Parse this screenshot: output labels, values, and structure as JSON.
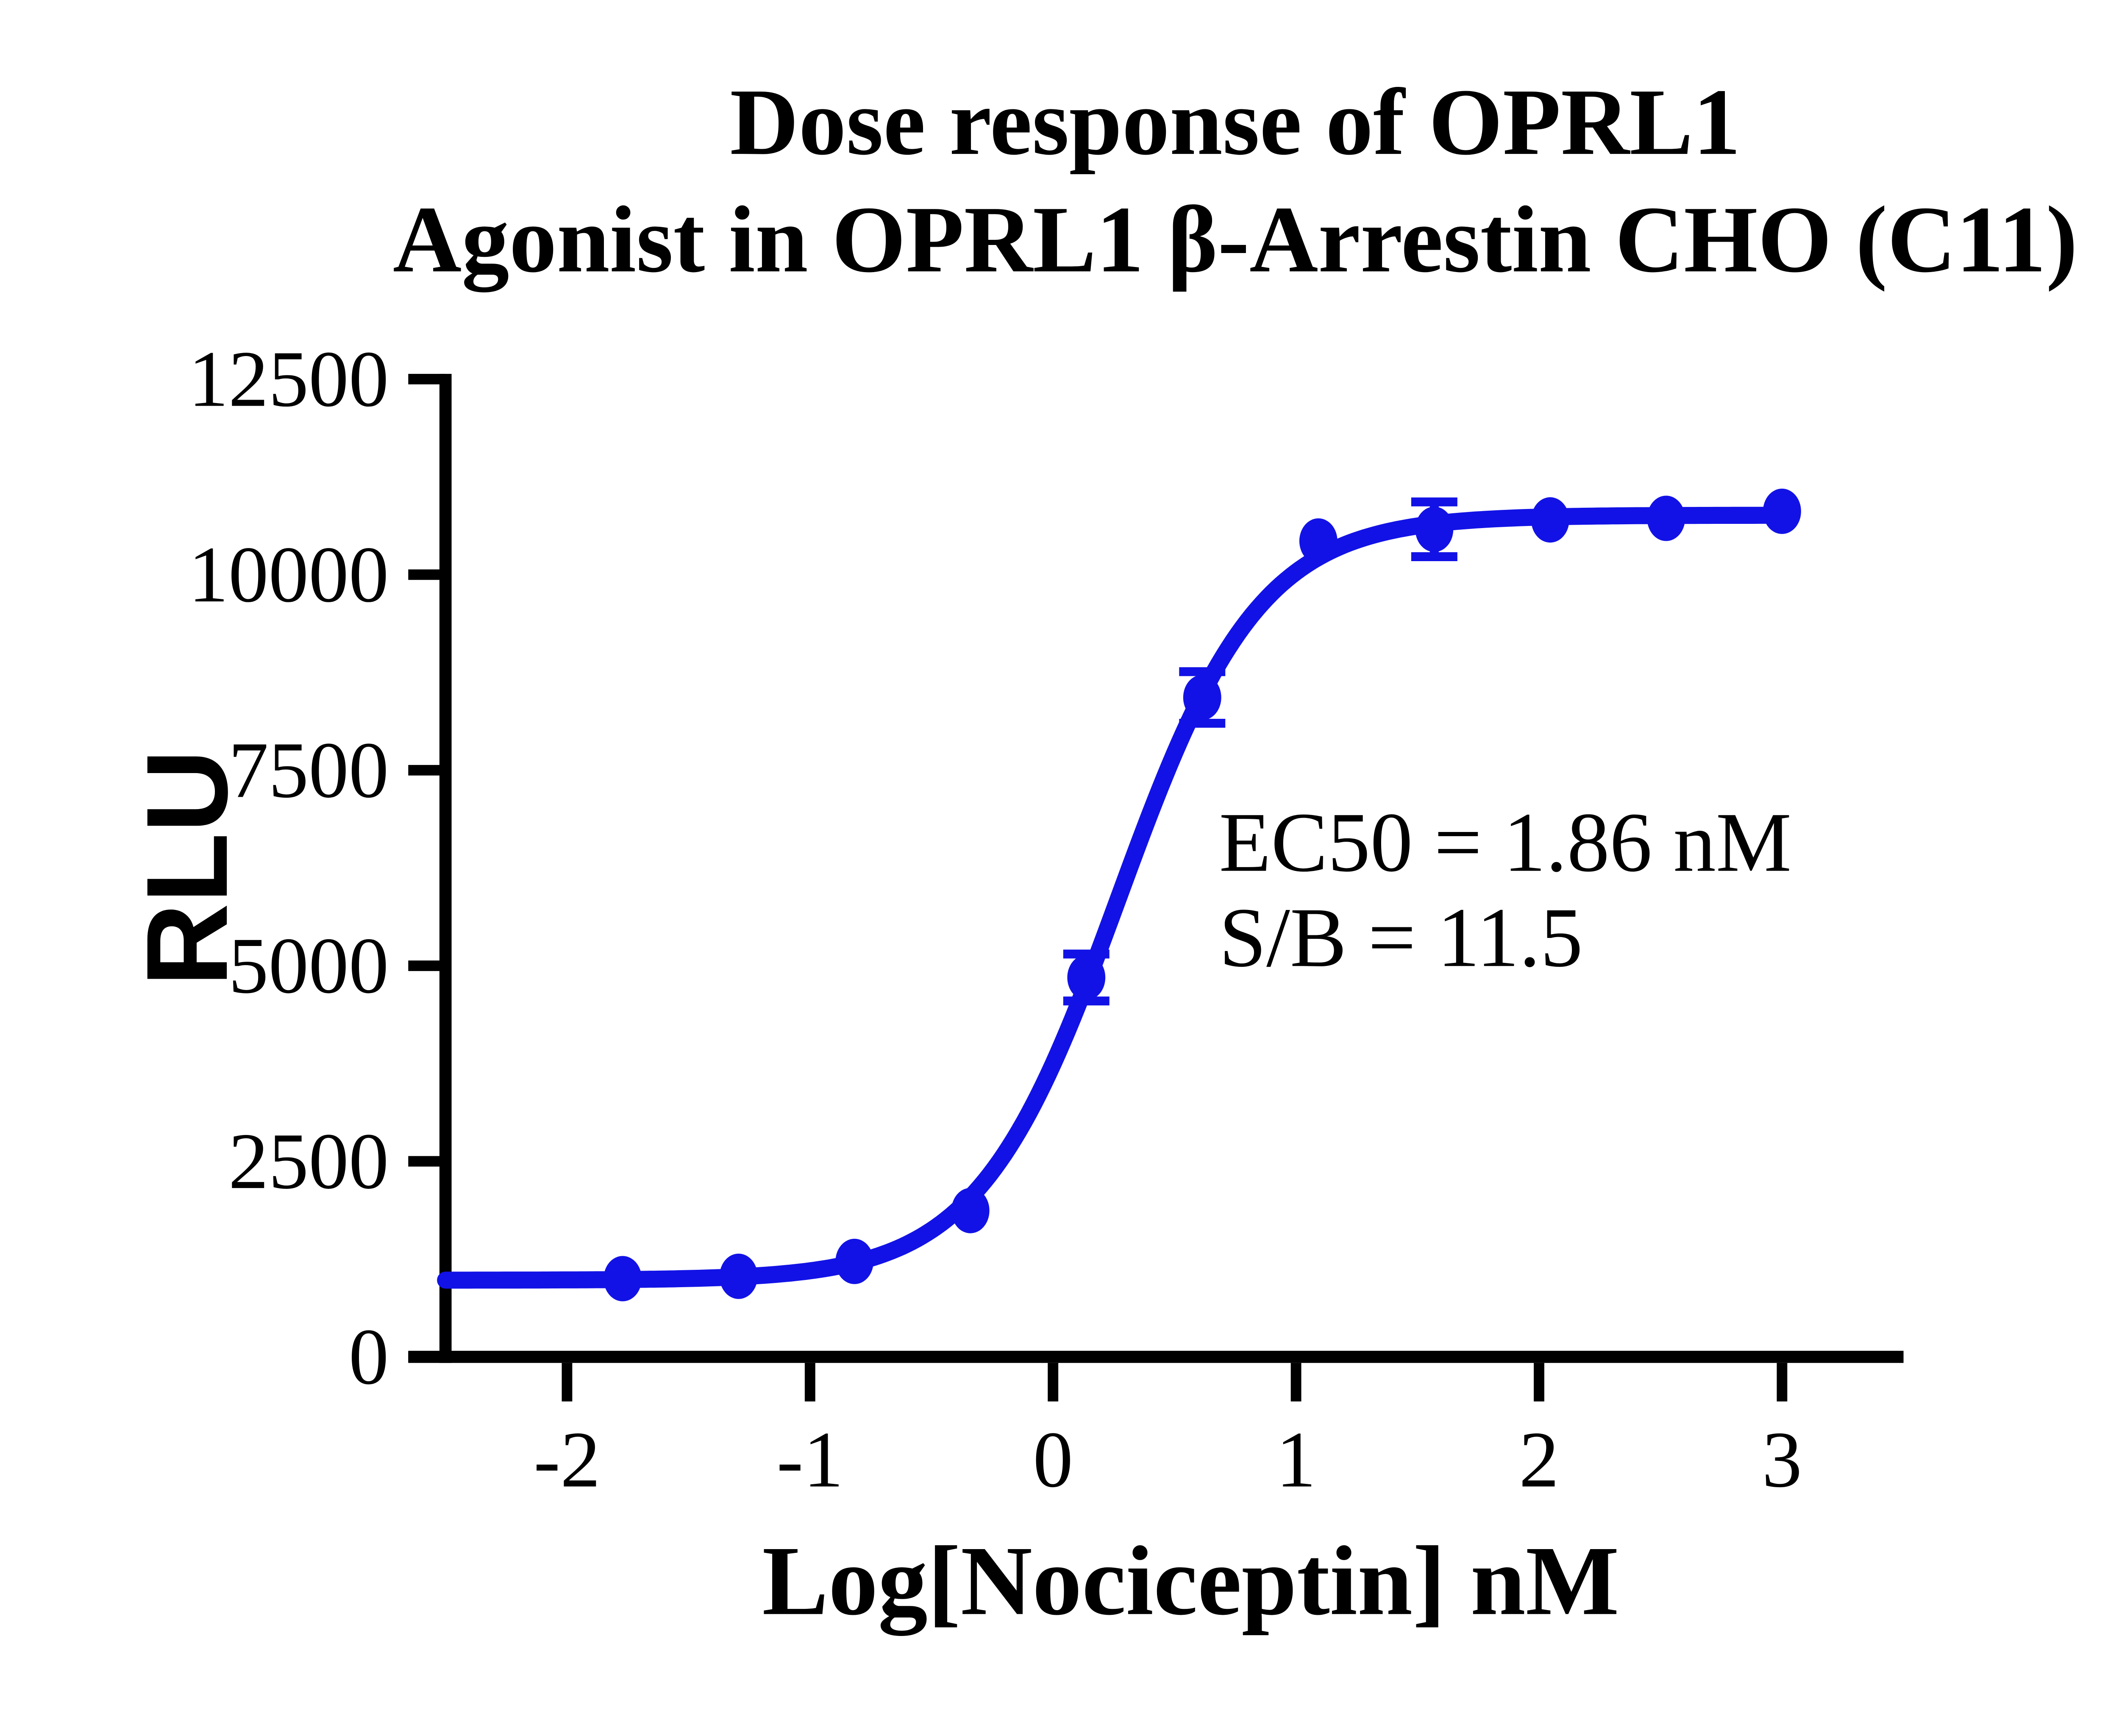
{
  "chart_data": {
    "type": "line",
    "title_lines": [
      "Dose response of OPRL1",
      "Agonist in OPRL1 β-Arrestin CHO (C11)"
    ],
    "xlabel": "Log[Nociceptin] nM",
    "ylabel": "RLU",
    "xlim": [
      -2.5,
      3.5
    ],
    "ylim": [
      0,
      12500
    ],
    "grid": false,
    "legend": false,
    "background_color": "#FFFFFF",
    "axis_color": "#000000",
    "x_ticks": [
      -2,
      -1,
      0,
      1,
      2,
      3
    ],
    "x_tick_labels": [
      "-2",
      "-1",
      "0",
      "1",
      "2",
      "3"
    ],
    "y_ticks": [
      0,
      2500,
      5000,
      7500,
      10000,
      12500
    ],
    "y_tick_labels": [
      "0",
      "2500",
      "5000",
      "7500",
      "10000",
      "12500"
    ],
    "series": [
      {
        "color": "#1212E6",
        "marker": "circle",
        "points": [
          {
            "x": -1.771,
            "y": 1000
          },
          {
            "x": -1.294,
            "y": 1030
          },
          {
            "x": -0.817,
            "y": 1220
          },
          {
            "x": -0.34,
            "y": 1870
          },
          {
            "x": 0.137,
            "y": 4850,
            "yerr": 300
          },
          {
            "x": 0.614,
            "y": 8430,
            "yerr": 330
          },
          {
            "x": 1.092,
            "y": 10430
          },
          {
            "x": 1.569,
            "y": 10580,
            "yerr": 350
          },
          {
            "x": 2.046,
            "y": 10700
          },
          {
            "x": 2.523,
            "y": 10720
          },
          {
            "x": 3.0,
            "y": 10810
          }
        ]
      }
    ],
    "fit": {
      "model": "4PL-sigmoid",
      "bottom": 980,
      "top": 10760,
      "log_ec50": 0.27,
      "hill_slope": 1.5,
      "curve_x_start": -2.5,
      "curve_x_end": 3.0
    },
    "annotation": {
      "ec50": "EC50 = 1.86 nM",
      "sb": "S/B = 11.5"
    }
  }
}
